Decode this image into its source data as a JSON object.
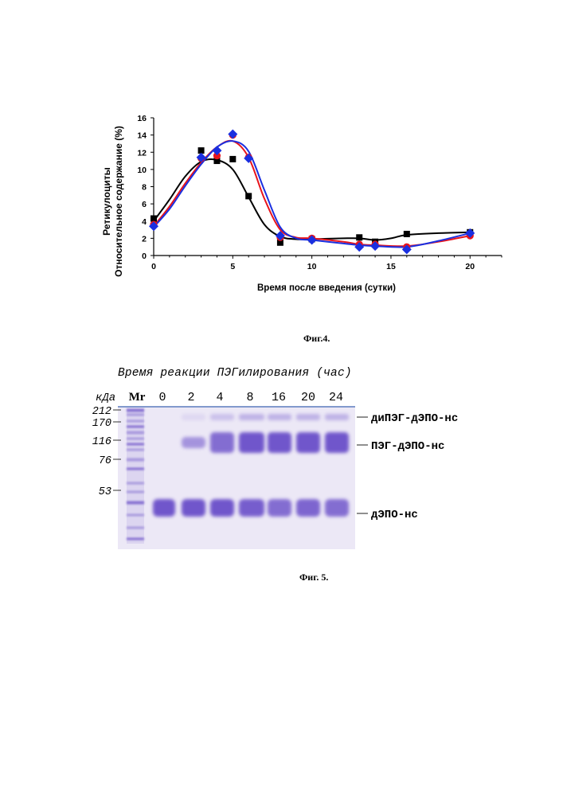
{
  "figure4": {
    "caption": "Фиг.4.",
    "chart_data": {
      "type": "scatter",
      "ylabel_line1": "Ретикулоциты",
      "ylabel_line2": "Относительное содержание (%)",
      "xlabel": "Время после введения (сутки)",
      "xlim": [
        0,
        22
      ],
      "ylim": [
        0,
        16
      ],
      "xticks": [
        0,
        5,
        10,
        15,
        20
      ],
      "yticks": [
        0,
        2,
        4,
        6,
        8,
        10,
        12,
        14,
        16
      ],
      "grid": false,
      "series": [
        {
          "color": "#000000",
          "marker": "square",
          "points": [
            [
              0,
              4.3
            ],
            [
              3,
              12.2
            ],
            [
              4,
              11.0
            ],
            [
              5,
              11.2
            ],
            [
              6,
              6.9
            ],
            [
              8,
              1.5
            ],
            [
              10,
              1.9
            ],
            [
              13,
              2.1
            ],
            [
              14,
              1.6
            ],
            [
              16,
              2.5
            ],
            [
              20,
              2.7
            ]
          ],
          "curve": [
            [
              0,
              4.0
            ],
            [
              1,
              6.5
            ],
            [
              2,
              9.2
            ],
            [
              3,
              10.9
            ],
            [
              4,
              11.1
            ],
            [
              5,
              10.0
            ],
            [
              6,
              6.8
            ],
            [
              7,
              3.6
            ],
            [
              8,
              2.2
            ],
            [
              9,
              1.9
            ],
            [
              10,
              1.9
            ],
            [
              12,
              2.0
            ],
            [
              13,
              2.0
            ],
            [
              14,
              1.8
            ],
            [
              15,
              2.0
            ],
            [
              16,
              2.4
            ],
            [
              18,
              2.6
            ],
            [
              20,
              2.7
            ]
          ]
        },
        {
          "color": "#e8141c",
          "marker": "circle",
          "points": [
            [
              0,
              3.6
            ],
            [
              3,
              11.3
            ],
            [
              4,
              11.6
            ],
            [
              5,
              14.0
            ],
            [
              6,
              11.4
            ],
            [
              8,
              2.1
            ],
            [
              10,
              2.0
            ],
            [
              13,
              1.3
            ],
            [
              14,
              1.3
            ],
            [
              16,
              1.0
            ],
            [
              20,
              2.3
            ]
          ],
          "curve": [
            [
              0,
              3.4
            ],
            [
              1,
              5.7
            ],
            [
              2,
              8.4
            ],
            [
              3,
              10.8
            ],
            [
              4,
              12.6
            ],
            [
              5,
              13.3
            ],
            [
              6,
              11.4
            ],
            [
              7,
              6.6
            ],
            [
              8,
              3.0
            ],
            [
              9,
              2.1
            ],
            [
              10,
              2.0
            ],
            [
              12,
              1.6
            ],
            [
              13,
              1.3
            ],
            [
              14,
              1.2
            ],
            [
              16,
              1.1
            ],
            [
              18,
              1.6
            ],
            [
              20,
              2.3
            ]
          ]
        },
        {
          "color": "#1a2fe0",
          "marker": "diamond",
          "points": [
            [
              0,
              3.4
            ],
            [
              3,
              11.4
            ],
            [
              4,
              12.2
            ],
            [
              5,
              14.1
            ],
            [
              6,
              11.3
            ],
            [
              8,
              2.3
            ],
            [
              10,
              1.8
            ],
            [
              13,
              1.0
            ],
            [
              14,
              1.1
            ],
            [
              16,
              0.7
            ],
            [
              20,
              2.6
            ]
          ],
          "curve": [
            [
              0,
              3.3
            ],
            [
              1,
              5.4
            ],
            [
              2,
              8.1
            ],
            [
              3,
              10.6
            ],
            [
              4,
              12.6
            ],
            [
              5,
              13.3
            ],
            [
              6,
              12.1
            ],
            [
              7,
              7.6
            ],
            [
              8,
              3.3
            ],
            [
              9,
              2.0
            ],
            [
              10,
              1.8
            ],
            [
              12,
              1.4
            ],
            [
              13,
              1.2
            ],
            [
              14,
              1.1
            ],
            [
              16,
              1.0
            ],
            [
              18,
              1.7
            ],
            [
              20,
              2.6
            ]
          ]
        }
      ]
    }
  },
  "figure5": {
    "caption": "Фиг. 5.",
    "title": "Время реакции ПЭГилирования (час)",
    "kda_label": "кДа",
    "lanes": [
      "Mr",
      "0",
      "2",
      "4",
      "8",
      "16",
      "20",
      "24"
    ],
    "markers": [
      "212",
      "170",
      "116",
      "76",
      "53"
    ],
    "band_labels": [
      "диПЭГ-дЭПО-нс",
      "ПЭГ-дЭПО-нс",
      "дЭПО-нс"
    ],
    "band_color": "#6a4fc9",
    "gel_background": "#ece8f6"
  }
}
